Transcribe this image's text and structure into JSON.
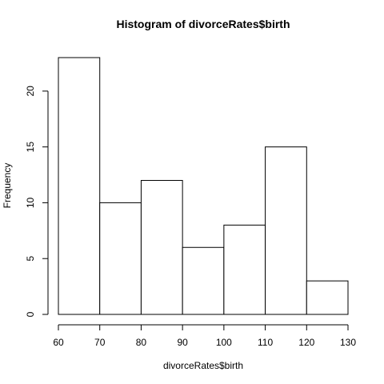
{
  "chart_data": {
    "type": "bar",
    "title": "Histogram of divorceRates$birth",
    "xlabel": "divorceRates$birth",
    "ylabel": "Frequency",
    "bin_edges": [
      60,
      70,
      80,
      90,
      100,
      110,
      120,
      130
    ],
    "values": [
      23,
      10,
      12,
      6,
      8,
      15,
      3
    ],
    "xlim": [
      60,
      130
    ],
    "ylim": [
      0,
      23
    ],
    "x_ticks": [
      60,
      70,
      80,
      90,
      100,
      110,
      120,
      130
    ],
    "y_ticks": [
      0,
      5,
      10,
      15,
      20
    ],
    "grid": false,
    "colors": {
      "bar_fill": "#ffffff",
      "bar_stroke": "#000000",
      "axis": "#000000",
      "background": "#ffffff"
    }
  }
}
